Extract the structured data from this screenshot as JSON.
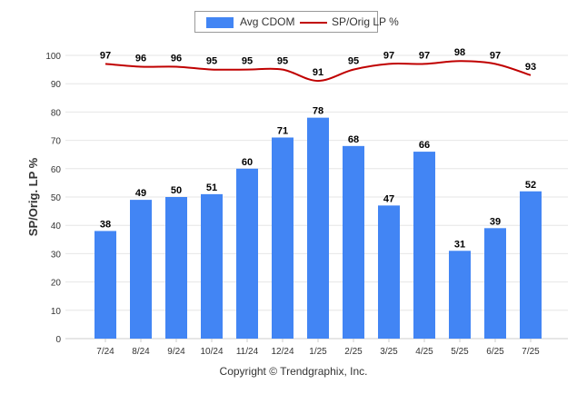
{
  "chart_data": {
    "type": "bar",
    "categories": [
      "7/24",
      "8/24",
      "9/24",
      "10/24",
      "11/24",
      "12/24",
      "1/25",
      "2/25",
      "3/25",
      "4/25",
      "5/25",
      "6/25",
      "7/25"
    ],
    "series": [
      {
        "name": "Avg CDOM",
        "type": "bar",
        "color": "#4285f4",
        "values": [
          38,
          49,
          50,
          51,
          60,
          71,
          78,
          68,
          47,
          66,
          31,
          39,
          52
        ]
      },
      {
        "name": "SP/Orig LP %",
        "type": "line",
        "color": "#c00000",
        "values": [
          97,
          96,
          96,
          95,
          95,
          95,
          91,
          95,
          97,
          97,
          98,
          97,
          93
        ]
      }
    ],
    "xlabel": "",
    "ylabel": "SP/Orig. LP %",
    "ylim": [
      0,
      100
    ],
    "yticks": [
      0,
      10,
      20,
      30,
      40,
      50,
      60,
      70,
      80,
      90,
      100
    ],
    "grid": true,
    "legend_position": "top-center"
  },
  "footer": {
    "copyright": "Copyright © Trendgraphix, Inc."
  }
}
